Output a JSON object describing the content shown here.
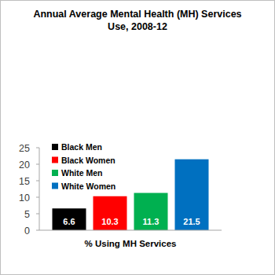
{
  "chart_data": {
    "type": "bar",
    "title": "Annual Average Mental Health (MH) Services Use, 2008-12",
    "categories": [
      "% Using MH Services"
    ],
    "series": [
      {
        "name": "Black Men",
        "color": "#000000",
        "values": [
          6.6
        ]
      },
      {
        "name": "Black Women",
        "color": "#ff0000",
        "values": [
          10.3
        ]
      },
      {
        "name": "White Men",
        "color": "#00b050",
        "values": [
          11.3
        ]
      },
      {
        "name": "White Women",
        "color": "#0070c0",
        "values": [
          21.5
        ]
      }
    ],
    "ylim": [
      0,
      25
    ],
    "yticks": [
      0,
      5,
      10,
      15,
      20,
      25
    ],
    "grid": false,
    "legend": "upper left",
    "data_labels": true
  }
}
